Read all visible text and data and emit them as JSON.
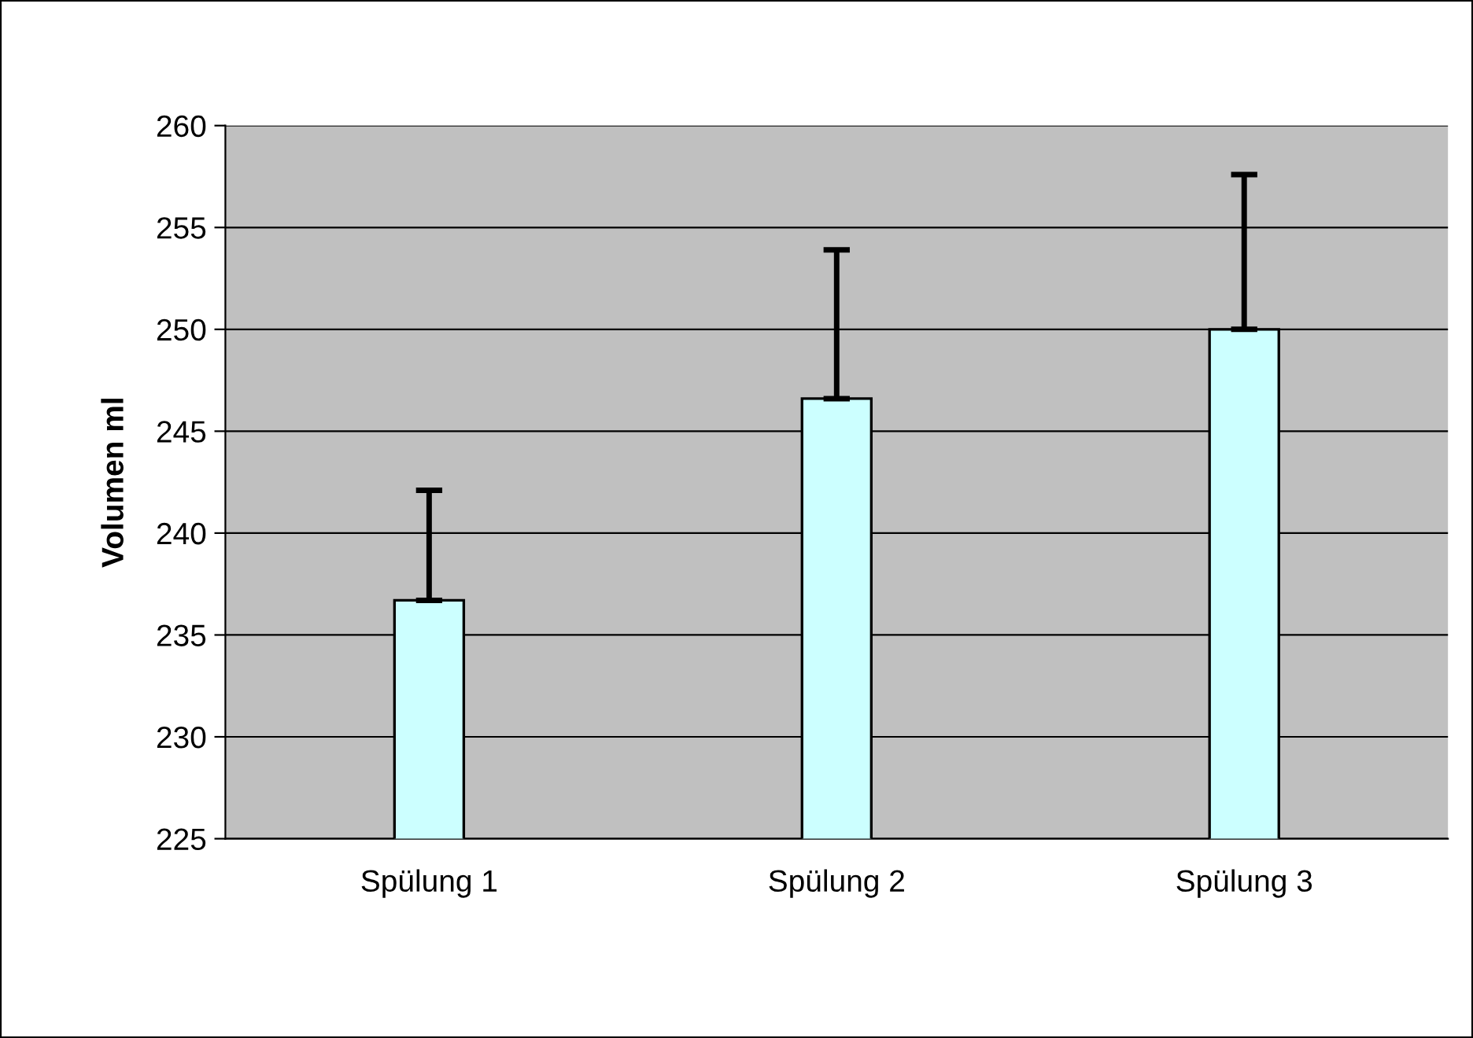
{
  "chart_data": {
    "type": "bar",
    "ylabel": "Volumen ml",
    "categories": [
      "Spülung 1",
      "Spülung 2",
      "Spülung 3"
    ],
    "values": [
      236.7,
      246.6,
      250.0
    ],
    "color": "#ccffff",
    "errors": [
      [
        236.7,
        242.1
      ],
      [
        246.6,
        253.9
      ],
      [
        250.0,
        257.6
      ]
    ],
    "ylim": [
      225,
      260
    ],
    "yticks": [
      225,
      230,
      235,
      240,
      245,
      250,
      255,
      260
    ],
    "grid": "y"
  }
}
